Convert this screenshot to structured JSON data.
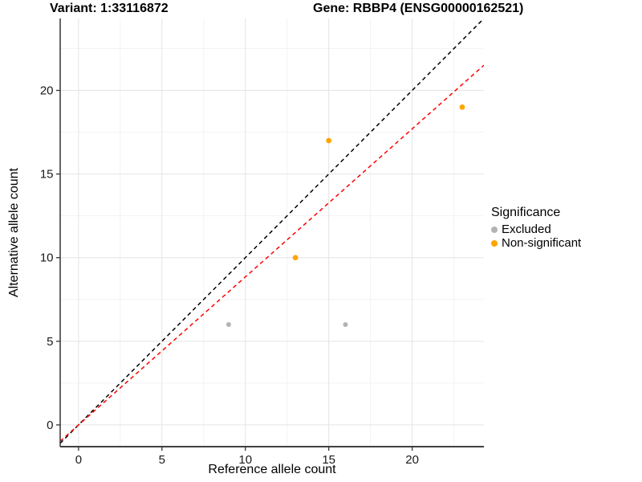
{
  "page": {
    "background": "#FFFFFF"
  },
  "chart_data": {
    "type": "scatter",
    "titles": {
      "left": "Variant: 1:33116872",
      "right": "Gene: RBBP4 (ENSG00000162521)"
    },
    "xlabel": "Reference allele count",
    "ylabel": "Alternative allele count",
    "xlim": [
      -1.1,
      24.3
    ],
    "ylim": [
      -1.3,
      24.3
    ],
    "xticks": [
      0,
      5,
      10,
      15,
      20
    ],
    "yticks": [
      0,
      5,
      10,
      15,
      20
    ],
    "minor_xticks": [
      2.5,
      7.5,
      12.5,
      17.5,
      22.5
    ],
    "minor_yticks": [
      2.5,
      7.5,
      12.5,
      17.5,
      22.5
    ],
    "grid": {
      "major_color": "#E4E4E4",
      "minor_color": "#F3F3F3",
      "on": true
    },
    "axis_color": "#404040",
    "series": [
      {
        "name": "Excluded",
        "color": "#B3B3B3",
        "radius": 3,
        "points": [
          [
            9,
            6
          ],
          [
            16,
            6
          ]
        ]
      },
      {
        "name": "Non-significant",
        "color": "#FFA500",
        "radius": 3.4,
        "points": [
          [
            13,
            10
          ],
          [
            15,
            17
          ],
          [
            23,
            19
          ]
        ]
      }
    ],
    "lines": [
      {
        "name": "identity-line",
        "color": "#000000",
        "slope": 1,
        "intercept": 0,
        "dash": "5,4"
      },
      {
        "name": "fit-line",
        "color": "#FF0000",
        "slope": 0.885,
        "intercept": 0,
        "dash": "5,4"
      }
    ],
    "legend": {
      "title": "Significance",
      "position": "right"
    }
  }
}
